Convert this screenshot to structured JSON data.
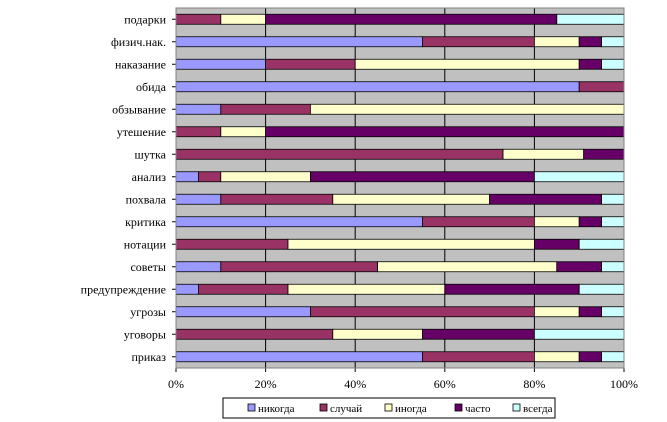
{
  "chart_data": {
    "type": "bar",
    "orientation": "horizontal",
    "stacked": "percent",
    "title": "",
    "xlabel": "",
    "ylabel": "",
    "xlim": [
      0,
      100
    ],
    "x_ticks": [
      "0%",
      "20%",
      "40%",
      "60%",
      "80%",
      "100%"
    ],
    "grid": "vertical",
    "legend_position": "bottom",
    "categories": [
      "подарки",
      "физич.нак.",
      "наказание",
      "обида",
      "обзывание",
      "утешение",
      "шутка",
      "анализ",
      "похвала",
      "критика",
      "нотации",
      "советы",
      "предупреждение",
      "угрозы",
      "уговоры",
      "приказ"
    ],
    "series": [
      {
        "name": "никогда",
        "color": "#9999ff",
        "values": [
          0,
          55,
          20,
          90,
          10,
          0,
          0,
          5,
          10,
          55,
          0,
          10,
          5,
          30,
          0,
          55
        ]
      },
      {
        "name": "случай",
        "color": "#993366",
        "values": [
          10,
          25,
          20,
          10,
          20,
          10,
          73,
          5,
          25,
          25,
          25,
          35,
          20,
          50,
          35,
          25
        ]
      },
      {
        "name": "иногда",
        "color": "#ffffcc",
        "values": [
          10,
          10,
          50,
          0,
          70,
          10,
          18,
          20,
          35,
          10,
          55,
          40,
          35,
          10,
          20,
          10
        ]
      },
      {
        "name": "часто",
        "color": "#660066",
        "values": [
          65,
          5,
          5,
          0,
          0,
          80,
          9,
          50,
          25,
          5,
          10,
          10,
          30,
          5,
          25,
          5
        ]
      },
      {
        "name": "всегда",
        "color": "#ccffff",
        "values": [
          15,
          5,
          5,
          0,
          0,
          0,
          0,
          20,
          5,
          5,
          10,
          5,
          10,
          5,
          20,
          5
        ]
      }
    ],
    "plot_background": "#c0c0c0"
  }
}
